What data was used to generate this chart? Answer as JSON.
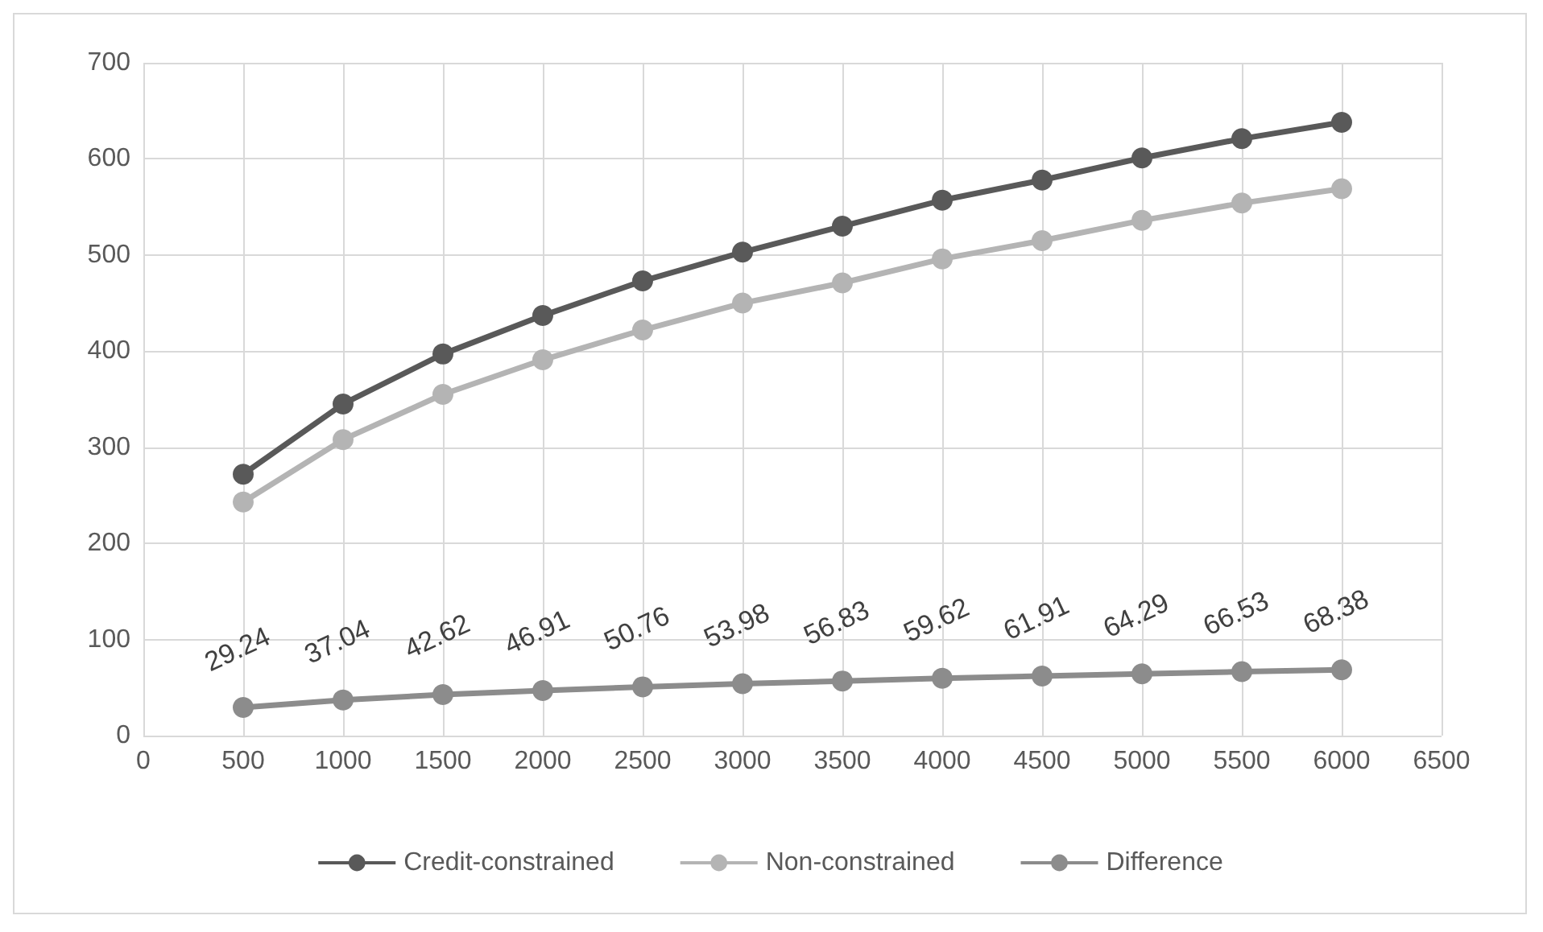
{
  "chart_data": {
    "type": "line",
    "x": [
      500,
      1000,
      1500,
      2000,
      2500,
      3000,
      3500,
      4000,
      4500,
      5000,
      5500,
      6000
    ],
    "series": [
      {
        "name": "Credit-constrained",
        "color": "#595959",
        "values": [
          272,
          345,
          397,
          437,
          473,
          503,
          530,
          557,
          578,
          601,
          621,
          638
        ]
      },
      {
        "name": "Non-constrained",
        "color": "#b4b4b4",
        "values": [
          243,
          308,
          355,
          391,
          422,
          450,
          471,
          496,
          515,
          536,
          554,
          569
        ]
      },
      {
        "name": "Difference",
        "color": "#8c8c8c",
        "values": [
          29.24,
          37.04,
          42.62,
          46.91,
          50.76,
          53.98,
          56.83,
          59.62,
          61.91,
          64.29,
          66.53,
          68.38
        ],
        "data_labels": true
      }
    ],
    "xlim": [
      0,
      6500
    ],
    "xticks": [
      0,
      500,
      1000,
      1500,
      2000,
      2500,
      3000,
      3500,
      4000,
      4500,
      5000,
      5500,
      6000,
      6500
    ],
    "ylim": [
      0,
      700
    ],
    "yticks": [
      0,
      100,
      200,
      300,
      400,
      500,
      600,
      700
    ],
    "grid": true,
    "legend": "bottom",
    "marker": "circle",
    "line_style": "solid"
  }
}
